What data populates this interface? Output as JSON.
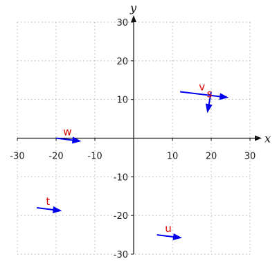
{
  "chart_data": {
    "type": "vector-field",
    "xlabel": "x",
    "ylabel": "y",
    "xlim": [
      -30,
      30
    ],
    "ylim": [
      -30,
      30
    ],
    "xticks": [
      -30,
      -20,
      -10,
      10,
      20,
      30
    ],
    "yticks": [
      30,
      20,
      10,
      -10,
      -20,
      -30
    ],
    "grid": true,
    "colors": {
      "vector": "#0000ee",
      "label": "#dd0000",
      "grid": "#b0b0b0",
      "axis": "#111111"
    },
    "vectors": [
      {
        "label": "v",
        "start": [
          12,
          12
        ],
        "end": [
          24.5,
          10.5
        ]
      },
      {
        "label": "s",
        "start": [
          20,
          12
        ],
        "end": [
          19,
          6.5
        ]
      },
      {
        "label": "w",
        "start": [
          -20,
          0
        ],
        "end": [
          -13.5,
          -0.8
        ]
      },
      {
        "label": "t",
        "start": [
          -25,
          -18
        ],
        "end": [
          -18.5,
          -18.8
        ]
      },
      {
        "label": "u",
        "start": [
          6,
          -25
        ],
        "end": [
          12.5,
          -25.8
        ]
      }
    ]
  }
}
